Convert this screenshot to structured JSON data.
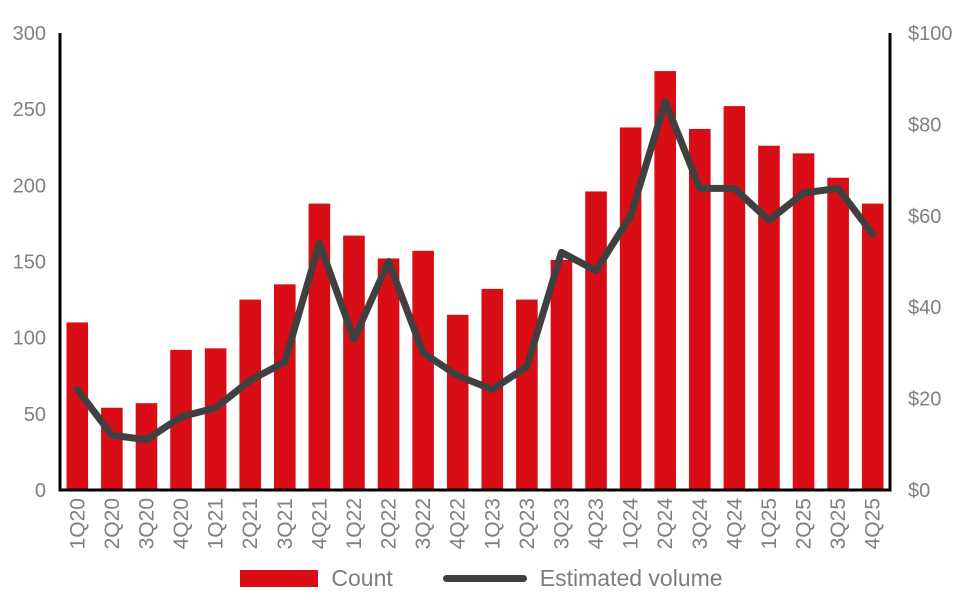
{
  "chart_data": {
    "type": "bar+line combo",
    "title": "",
    "categories": [
      "1Q20",
      "2Q20",
      "3Q20",
      "4Q20",
      "1Q21",
      "2Q21",
      "3Q21",
      "4Q21",
      "1Q22",
      "2Q22",
      "3Q22",
      "4Q22",
      "1Q23",
      "2Q23",
      "3Q23",
      "4Q23",
      "1Q24",
      "2Q24",
      "3Q24",
      "4Q24",
      "1Q25",
      "2Q25",
      "3Q25",
      "4Q25"
    ],
    "series": [
      {
        "name": "Count",
        "type": "bar",
        "axis": "left",
        "color": "#d80d15",
        "values": [
          110,
          54,
          57,
          92,
          93,
          125,
          135,
          188,
          167,
          152,
          157,
          115,
          132,
          125,
          151,
          196,
          238,
          275,
          237,
          252,
          226,
          221,
          205,
          188
        ]
      },
      {
        "name": "Estimated volume",
        "type": "line",
        "axis": "right",
        "color": "#404040",
        "values": [
          22,
          12,
          11,
          16,
          18,
          24,
          28,
          54,
          33,
          50,
          30,
          25,
          22,
          27,
          52,
          48,
          60,
          85,
          66,
          66,
          59,
          65,
          66,
          56
        ]
      }
    ],
    "left_axis": {
      "min": 0,
      "max": 300,
      "step": 50,
      "tick_labels": [
        "0",
        "50",
        "100",
        "150",
        "200",
        "250",
        "300"
      ]
    },
    "right_axis": {
      "min": 0,
      "max": 100,
      "step": 20,
      "tick_labels": [
        "$0",
        "$20",
        "$40",
        "$60",
        "$80",
        "$100"
      ]
    },
    "grid": false,
    "legend_position": "bottom",
    "x_tick_rotation": -90
  },
  "colors": {
    "bar": "#d80d15",
    "line": "#404040",
    "axis_line": "#000000",
    "tick_text": "#808080",
    "legend_text": "#7d7d7d",
    "background": "#ffffff"
  }
}
